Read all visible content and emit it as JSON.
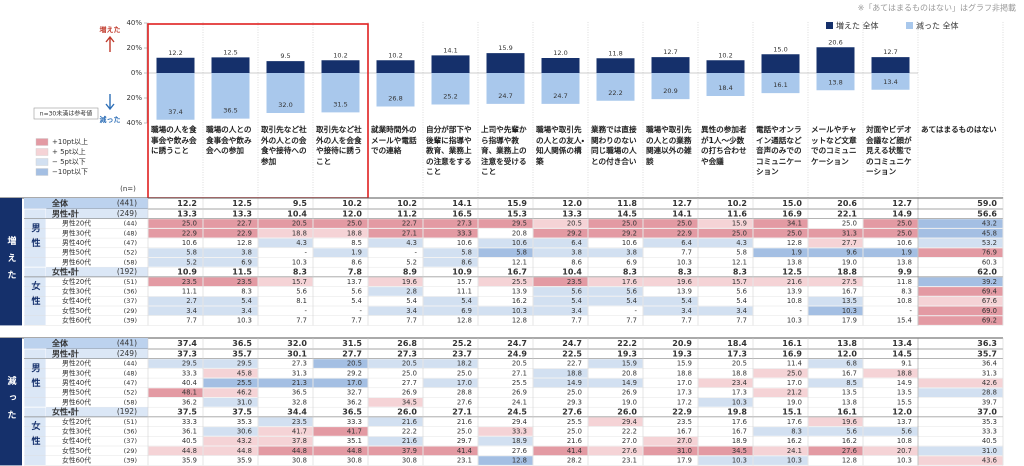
{
  "note": "※「あてはまるものはない」はグラフ非掲載",
  "small_note": "n=30未満は参考値",
  "arrow_up": "増えた",
  "arrow_down": "減った",
  "legend_items": [
    {
      "label": "+10pt以上",
      "threshold": 10,
      "color": "#e39aa3"
    },
    {
      "label": "+ 5pt以上",
      "threshold": 5,
      "color": "#f5d3d6"
    },
    {
      "label": "− 5pt以下",
      "threshold": -5,
      "color": "#d2e0f1"
    },
    {
      "label": "−10pt以下",
      "threshold": -10,
      "color": "#a4bfe3"
    }
  ],
  "chart_data": {
    "type": "bar",
    "categories": [
      "職場の人を食事会や飲み会に誘うこと",
      "職場の人との食事会や飲み会への参加",
      "取引先など社外の人との会食や接待への参加",
      "取引先など社外の人を会食や接待に誘うこと",
      "就業時間外のメールや電話での連絡",
      "自分が部下や後輩に指導や教育、業務上の注意をすること",
      "上司や先輩から指導や教育、業務上の注意を受けること",
      "職場や取引先の人との友人・知人関係の構築",
      "業務では直接関わりのない同じ職場の人との付き合い",
      "職場や取引先の人との業務関連以外の雑談",
      "異性の参加者が1人～少数の打ち合わせや会議",
      "電話やオンライン通話など音声のみでのコミュニケーション",
      "メールやチャットなど文章でのコミュニケーション",
      "対面やビデオ会議など顔が見える状態でのコミュニケーション"
    ],
    "series": [
      {
        "name": "増えた 全体",
        "color": "#15306b",
        "values": [
          12.2,
          12.5,
          9.5,
          10.2,
          10.2,
          14.1,
          15.9,
          12.0,
          11.8,
          12.7,
          10.2,
          15.0,
          20.6,
          12.7
        ],
        "value_labels": [
          "12.2",
          "12.5",
          "9.5",
          "10.2",
          "10.2",
          "14.1",
          "15.9",
          "12.0",
          "11.8",
          "12.7",
          "10.2",
          "15.0",
          "20.6",
          "12.7"
        ]
      },
      {
        "name": "減った 全体",
        "color": "#a9c8ec",
        "values": [
          -37.4,
          -36.5,
          -32.0,
          -31.5,
          -26.8,
          -25.2,
          -24.7,
          -24.7,
          -22.2,
          -20.9,
          -18.4,
          -16.1,
          -13.8,
          -13.4
        ],
        "value_labels": [
          "37.4",
          "36.5",
          "32.0",
          "31.5",
          "26.8",
          "25.2",
          "24.7",
          "24.7",
          "22.2",
          "20.9",
          "18.4",
          "16.1",
          "13.8",
          "13.4"
        ]
      }
    ],
    "ylim": [
      -40,
      40
    ],
    "yticks": [
      {
        "value": 40,
        "label": "40%"
      },
      {
        "value": 20,
        "label": "20%"
      },
      {
        "value": 0,
        "label": "0%"
      },
      {
        "value": -20,
        "label": "20%"
      },
      {
        "value": -40,
        "label": "40%"
      }
    ]
  },
  "table": {
    "n_header": "(n=)",
    "last_column": "あてはまるものはない",
    "sections": [
      {
        "label": "増えた",
        "total": {
          "label": "全体",
          "n": "(441)",
          "values": [
            "12.2",
            "12.5",
            "9.5",
            "10.2",
            "10.2",
            "14.1",
            "15.9",
            "12.0",
            "11.8",
            "12.7",
            "10.2",
            "15.0",
            "20.6",
            "12.7",
            "59.0"
          ]
        },
        "groups": [
          {
            "label": "男性",
            "total": {
              "label": "男性・計",
              "n": "(249)",
              "values": [
                "13.3",
                "13.3",
                "10.4",
                "12.0",
                "11.2",
                "16.5",
                "15.3",
                "13.3",
                "14.5",
                "14.1",
                "11.6",
                "16.9",
                "22.1",
                "14.9",
                "56.6"
              ]
            },
            "rows": [
              {
                "label": "男性20代",
                "n": "(44)",
                "values": [
                  "25.0",
                  "22.7",
                  "20.5",
                  "25.0",
                  "22.7",
                  "27.3",
                  "29.5",
                  "20.5",
                  "25.0",
                  "25.0",
                  "15.9",
                  "34.1",
                  "25.0",
                  "25.0",
                  "43.2"
                ]
              },
              {
                "label": "男性30代",
                "n": "(48)",
                "values": [
                  "22.9",
                  "22.9",
                  "18.8",
                  "18.8",
                  "27.1",
                  "33.3",
                  "20.8",
                  "29.2",
                  "29.2",
                  "22.9",
                  "25.0",
                  "25.0",
                  "31.3",
                  "25.0",
                  "45.8"
                ]
              },
              {
                "label": "男性40代",
                "n": "(47)",
                "values": [
                  "10.6",
                  "12.8",
                  "4.3",
                  "8.5",
                  "4.3",
                  "10.6",
                  "10.6",
                  "6.4",
                  "10.6",
                  "6.4",
                  "4.3",
                  "12.8",
                  "27.7",
                  "10.6",
                  "53.2"
                ]
              },
              {
                "label": "男性50代",
                "n": "(52)",
                "values": [
                  "5.8",
                  "3.8",
                  "-",
                  "1.9",
                  "-",
                  "5.8",
                  "5.8",
                  "3.8",
                  "3.8",
                  "7.7",
                  "5.8",
                  "1.9",
                  "9.6",
                  "1.9",
                  "76.9"
                ]
              },
              {
                "label": "男性60代",
                "n": "(58)",
                "values": [
                  "5.2",
                  "6.9",
                  "10.3",
                  "8.6",
                  "5.2",
                  "8.6",
                  "12.1",
                  "8.6",
                  "6.9",
                  "10.3",
                  "12.1",
                  "13.8",
                  "19.0",
                  "13.8",
                  "60.3"
                ]
              }
            ]
          },
          {
            "label": "女性",
            "total": {
              "label": "女性・計",
              "n": "(192)",
              "values": [
                "10.9",
                "11.5",
                "8.3",
                "7.8",
                "8.9",
                "10.9",
                "16.7",
                "10.4",
                "8.3",
                "8.3",
                "8.3",
                "12.5",
                "18.8",
                "9.9",
                "62.0"
              ]
            },
            "rows": [
              {
                "label": "女性20代",
                "n": "(51)",
                "values": [
                  "23.5",
                  "23.5",
                  "15.7",
                  "13.7",
                  "19.6",
                  "15.7",
                  "25.5",
                  "23.5",
                  "17.6",
                  "19.6",
                  "15.7",
                  "21.6",
                  "27.5",
                  "11.8",
                  "39.2"
                ]
              },
              {
                "label": "女性30代",
                "n": "(36)",
                "values": [
                  "11.1",
                  "8.3",
                  "5.6",
                  "5.6",
                  "2.8",
                  "11.1",
                  "13.9",
                  "5.6",
                  "5.6",
                  "13.9",
                  "5.6",
                  "13.9",
                  "16.7",
                  "8.3",
                  "69.4"
                ]
              },
              {
                "label": "女性40代",
                "n": "(37)",
                "values": [
                  "2.7",
                  "5.4",
                  "8.1",
                  "5.4",
                  "5.4",
                  "5.4",
                  "16.2",
                  "5.4",
                  "5.4",
                  "5.4",
                  "5.4",
                  "10.8",
                  "13.5",
                  "10.8",
                  "67.6"
                ]
              },
              {
                "label": "女性50代",
                "n": "(29)",
                "values": [
                  "3.4",
                  "3.4",
                  "-",
                  "-",
                  "3.4",
                  "6.9",
                  "10.3",
                  "3.4",
                  "-",
                  "3.4",
                  "3.4",
                  "-",
                  "10.3",
                  "-",
                  "69.0"
                ]
              },
              {
                "label": "女性60代",
                "n": "(39)",
                "values": [
                  "7.7",
                  "10.3",
                  "7.7",
                  "7.7",
                  "7.7",
                  "12.8",
                  "12.8",
                  "7.7",
                  "7.7",
                  "7.7",
                  "7.7",
                  "10.3",
                  "17.9",
                  "15.4",
                  "69.2"
                ]
              }
            ]
          }
        ]
      },
      {
        "label": "減った",
        "total": {
          "label": "全体",
          "n": "(441)",
          "values": [
            "37.4",
            "36.5",
            "32.0",
            "31.5",
            "26.8",
            "25.2",
            "24.7",
            "24.7",
            "22.2",
            "20.9",
            "18.4",
            "16.1",
            "13.8",
            "13.4",
            "36.3"
          ]
        },
        "groups": [
          {
            "label": "男性",
            "total": {
              "label": "男性・計",
              "n": "(249)",
              "values": [
                "37.3",
                "35.7",
                "30.1",
                "27.7",
                "27.3",
                "23.7",
                "24.9",
                "22.5",
                "19.3",
                "19.3",
                "17.3",
                "16.9",
                "12.0",
                "14.5",
                "35.7"
              ]
            },
            "rows": [
              {
                "label": "男性20代",
                "n": "(44)",
                "values": [
                  "29.5",
                  "29.5",
                  "27.3",
                  "20.5",
                  "20.5",
                  "18.2",
                  "20.5",
                  "22.7",
                  "15.9",
                  "15.9",
                  "20.5",
                  "11.4",
                  "6.8",
                  "9.1",
                  "36.4"
                ]
              },
              {
                "label": "男性30代",
                "n": "(48)",
                "values": [
                  "33.3",
                  "45.8",
                  "31.3",
                  "29.2",
                  "25.0",
                  "25.0",
                  "27.1",
                  "18.8",
                  "20.8",
                  "18.8",
                  "18.8",
                  "25.0",
                  "16.7",
                  "18.8",
                  "31.3"
                ]
              },
              {
                "label": "男性40代",
                "n": "(47)",
                "values": [
                  "40.4",
                  "25.5",
                  "21.3",
                  "17.0",
                  "27.7",
                  "17.0",
                  "25.5",
                  "14.9",
                  "14.9",
                  "17.0",
                  "23.4",
                  "17.0",
                  "8.5",
                  "14.9",
                  "42.6"
                ]
              },
              {
                "label": "男性50代",
                "n": "(52)",
                "values": [
                  "48.1",
                  "46.2",
                  "36.5",
                  "32.7",
                  "26.9",
                  "28.8",
                  "26.9",
                  "25.0",
                  "26.9",
                  "17.3",
                  "17.3",
                  "21.2",
                  "13.5",
                  "13.5",
                  "28.8"
                ]
              },
              {
                "label": "男性60代",
                "n": "(58)",
                "values": [
                  "36.2",
                  "31.0",
                  "32.8",
                  "36.2",
                  "34.5",
                  "27.6",
                  "24.1",
                  "29.3",
                  "19.0",
                  "17.2",
                  "10.3",
                  "19.0",
                  "13.8",
                  "15.5",
                  "39.7"
                ]
              }
            ]
          },
          {
            "label": "女性",
            "total": {
              "label": "女性・計",
              "n": "(192)",
              "values": [
                "37.5",
                "37.5",
                "34.4",
                "36.5",
                "26.0",
                "27.1",
                "24.5",
                "27.6",
                "26.0",
                "22.9",
                "19.8",
                "15.1",
                "16.1",
                "12.0",
                "37.0"
              ]
            },
            "rows": [
              {
                "label": "女性20代",
                "n": "(51)",
                "values": [
                  "33.3",
                  "35.3",
                  "23.5",
                  "33.3",
                  "21.6",
                  "21.6",
                  "29.4",
                  "25.5",
                  "29.4",
                  "23.5",
                  "17.6",
                  "17.6",
                  "19.6",
                  "13.7",
                  "35.3"
                ]
              },
              {
                "label": "女性30代",
                "n": "(36)",
                "values": [
                  "36.1",
                  "30.6",
                  "41.7",
                  "41.7",
                  "22.2",
                  "25.0",
                  "33.3",
                  "25.0",
                  "22.2",
                  "16.7",
                  "16.7",
                  "8.3",
                  "5.6",
                  "5.6",
                  "33.3"
                ]
              },
              {
                "label": "女性40代",
                "n": "(37)",
                "values": [
                  "40.5",
                  "43.2",
                  "37.8",
                  "35.1",
                  "21.6",
                  "29.7",
                  "18.9",
                  "21.6",
                  "27.0",
                  "27.0",
                  "18.9",
                  "16.2",
                  "16.2",
                  "10.8",
                  "40.5"
                ]
              },
              {
                "label": "女性50代",
                "n": "(29)",
                "values": [
                  "44.8",
                  "44.8",
                  "44.8",
                  "44.8",
                  "37.9",
                  "41.4",
                  "27.6",
                  "41.4",
                  "27.6",
                  "31.0",
                  "34.5",
                  "24.1",
                  "27.6",
                  "20.7",
                  "31.0"
                ]
              },
              {
                "label": "女性60代",
                "n": "(39)",
                "values": [
                  "35.9",
                  "35.9",
                  "30.8",
                  "30.8",
                  "30.8",
                  "23.1",
                  "12.8",
                  "28.2",
                  "23.1",
                  "17.9",
                  "10.3",
                  "10.3",
                  "12.8",
                  "10.3",
                  "43.6"
                ]
              }
            ]
          }
        ]
      }
    ]
  }
}
